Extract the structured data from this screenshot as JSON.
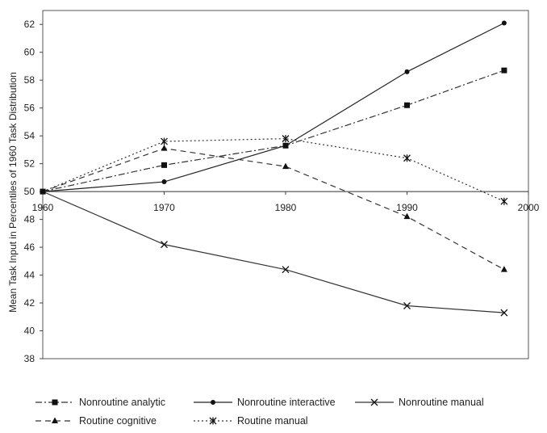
{
  "chart_data": {
    "type": "line",
    "title": "",
    "xlabel": "",
    "ylabel": "Mean Task Input in Percentiles of 1960 Task Distribution",
    "x_ticks": [
      "1960",
      "1970",
      "1980",
      "1990",
      "2000"
    ],
    "xlim": [
      1960,
      2000
    ],
    "y_ticks": [
      "38",
      "40",
      "42",
      "44",
      "46",
      "48",
      "50",
      "52",
      "54",
      "56",
      "58",
      "60",
      "62"
    ],
    "ylim": [
      38,
      63
    ],
    "grid": false,
    "legend_position": "bottom",
    "series": [
      {
        "name": "Nonroutine analytic",
        "x": [
          1960,
          1970,
          1980,
          1990,
          1998
        ],
        "y": [
          50.0,
          51.9,
          53.3,
          56.2,
          58.7
        ],
        "line_style": "dash-dot",
        "marker": "square",
        "color": "#333333"
      },
      {
        "name": "Nonroutine interactive",
        "x": [
          1960,
          1970,
          1980,
          1990,
          1998
        ],
        "y": [
          50.0,
          50.7,
          53.3,
          58.6,
          62.1
        ],
        "line_style": "solid",
        "marker": "circle",
        "color": "#222222"
      },
      {
        "name": "Nonroutine manual",
        "x": [
          1960,
          1970,
          1980,
          1990,
          1998
        ],
        "y": [
          50.0,
          46.2,
          44.4,
          41.8,
          41.3
        ],
        "line_style": "solid",
        "marker": "x",
        "color": "#333333"
      },
      {
        "name": "Routine cognitive",
        "x": [
          1960,
          1970,
          1980,
          1990,
          1998
        ],
        "y": [
          50.0,
          53.1,
          51.8,
          48.2,
          44.4
        ],
        "line_style": "dashed",
        "marker": "triangle",
        "color": "#333333"
      },
      {
        "name": "Routine manual",
        "x": [
          1960,
          1970,
          1980,
          1990,
          1998
        ],
        "y": [
          50.0,
          53.6,
          53.8,
          52.4,
          49.3
        ],
        "line_style": "dotted",
        "marker": "asterisk",
        "color": "#333333"
      }
    ]
  }
}
